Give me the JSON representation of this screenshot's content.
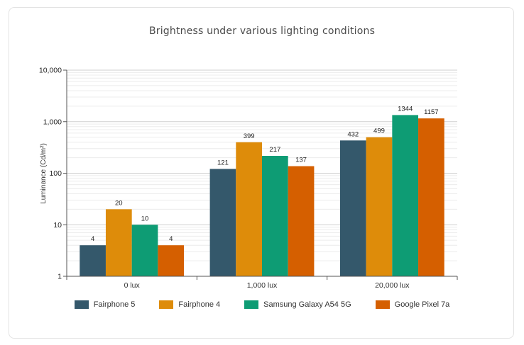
{
  "chart_data": {
    "type": "bar",
    "title": "Brightness under various lighting conditions",
    "ylabel": "Luminance (Cd/m²)",
    "xlabel": "",
    "yscale": "log",
    "ylim": [
      1,
      10000
    ],
    "yticks": [
      {
        "value": 1,
        "label": "1"
      },
      {
        "value": 10,
        "label": "10"
      },
      {
        "value": 100,
        "label": "100"
      },
      {
        "value": 1000,
        "label": "1,000"
      },
      {
        "value": 10000,
        "label": "10,000"
      }
    ],
    "grid": true,
    "legend_position": "bottom",
    "categories": [
      "0 lux",
      "1,000 lux",
      "20,000 lux"
    ],
    "series": [
      {
        "name": "Fairphone 5",
        "color": "#34586b",
        "values": [
          4,
          121,
          432
        ]
      },
      {
        "name": "Fairphone 4",
        "color": "#de8c0a",
        "values": [
          20,
          399,
          499
        ]
      },
      {
        "name": "Samsung Galaxy A54 5G",
        "color": "#0e9c74",
        "values": [
          10,
          217,
          1344
        ]
      },
      {
        "name": "Google Pixel 7a",
        "color": "#d55f00",
        "values": [
          4,
          137,
          1157
        ]
      }
    ]
  }
}
